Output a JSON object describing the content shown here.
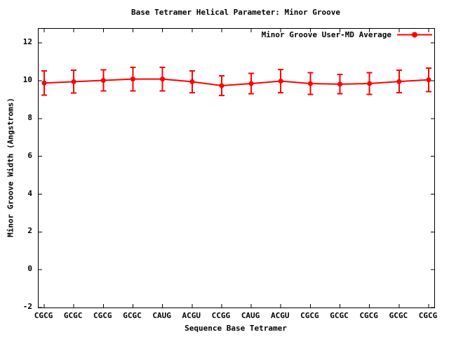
{
  "window": {
    "background": "#ffffff",
    "text_color": "#000000"
  },
  "chart_data": {
    "type": "line",
    "title": "Base Tetramer Helical Parameter: Minor Groove",
    "xlabel": "Sequence Base Tetramer",
    "ylabel": "Minor Groove Width (Angstroms)",
    "categories": [
      "CGCG",
      "GCGC",
      "CGCG",
      "GCGC",
      "CAUG",
      "ACGU",
      "CCGG",
      "CAUG",
      "ACGU",
      "CGCG",
      "GCGC",
      "CGCG",
      "GCGC",
      "CGCG"
    ],
    "series": [
      {
        "name": "Minor Groove User-MD Average",
        "color": "#ff0000",
        "marker": "filled-circle",
        "style": "line-with-error-bars",
        "values": [
          9.88,
          9.95,
          10.02,
          10.09,
          10.09,
          9.95,
          9.74,
          9.85,
          9.98,
          9.85,
          9.82,
          9.85,
          9.96,
          10.05
        ],
        "errors": [
          0.65,
          0.6,
          0.55,
          0.62,
          0.62,
          0.58,
          0.52,
          0.54,
          0.62,
          0.57,
          0.51,
          0.58,
          0.6,
          0.62
        ]
      }
    ],
    "ylim": [
      -2,
      12.75
    ],
    "yticks": [
      -2,
      0,
      2,
      4,
      6,
      8,
      10,
      12
    ],
    "grid": false,
    "legend_position": "top-right-inside",
    "axis_color": "#000000",
    "border": "box-with-mirrored-ticks"
  }
}
